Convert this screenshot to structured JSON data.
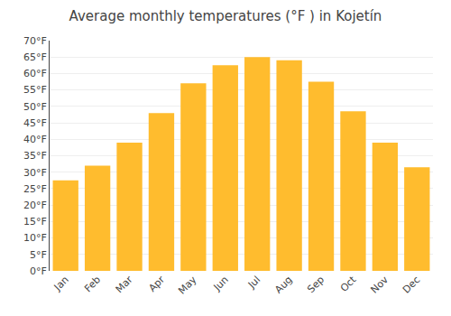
{
  "chart_data": {
    "type": "bar",
    "title": "Average monthly temperatures (°F ) in Kojetín",
    "categories": [
      "Jan",
      "Feb",
      "Mar",
      "Apr",
      "May",
      "Jun",
      "Jul",
      "Aug",
      "Sep",
      "Oct",
      "Nov",
      "Dec"
    ],
    "values": [
      27.5,
      32.0,
      39.0,
      48.0,
      57.0,
      62.5,
      65.0,
      64.0,
      57.5,
      48.5,
      39.0,
      31.5
    ],
    "color": "#FFBC2E",
    "ylim": [
      0,
      70
    ],
    "yticks": [
      {
        "value": 0,
        "label": "0°F"
      },
      {
        "value": 5,
        "label": "5°F"
      },
      {
        "value": 10,
        "label": "10°F"
      },
      {
        "value": 15,
        "label": "15°F"
      },
      {
        "value": 20,
        "label": "20°F"
      },
      {
        "value": 25,
        "label": "25°F"
      },
      {
        "value": 30,
        "label": "30°F"
      },
      {
        "value": 35,
        "label": "35°F"
      },
      {
        "value": 40,
        "label": "40°F"
      },
      {
        "value": 45,
        "label": "45°F"
      },
      {
        "value": 50,
        "label": "50°F"
      },
      {
        "value": 55,
        "label": "55°F"
      },
      {
        "value": 60,
        "label": "60°F"
      },
      {
        "value": 65,
        "label": "65°F"
      },
      {
        "value": 70,
        "label": "70°F"
      }
    ],
    "grid": true
  }
}
